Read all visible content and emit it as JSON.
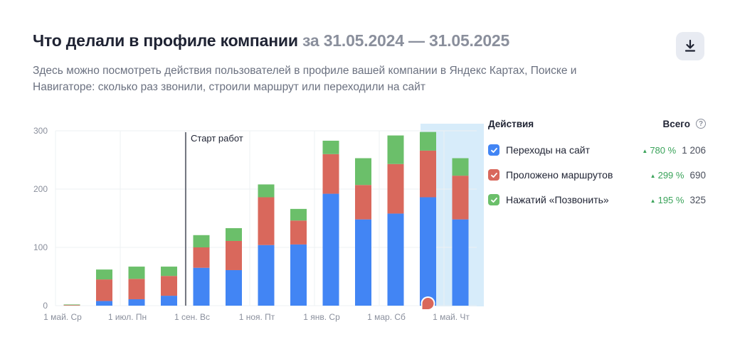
{
  "header": {
    "title_main": "Что делали в профиле компании",
    "title_range": "за 31.05.2024 — 31.05.2025",
    "subtitle": "Здесь можно посмотреть действия пользователей в профиле вашей компании в Яндекс Картах, Поиске и Навигаторе: сколько раз звонили, строили маршрут или переходили на сайт",
    "download_icon": "download-icon"
  },
  "legend": {
    "actions_label": "Действия",
    "total_label": "Всего",
    "help_symbol": "?",
    "items": [
      {
        "label": "Переходы на сайт",
        "growth": "780 %",
        "total": "1 206",
        "color": "#4285f4"
      },
      {
        "label": "Проложено маршрутов",
        "growth": "299 %",
        "total": "690",
        "color": "#d9685c"
      },
      {
        "label": "Нажатий «Позвонить»",
        "growth": "195 %",
        "total": "325",
        "color": "#6bbf6a"
      }
    ]
  },
  "chart_data": {
    "type": "bar",
    "stacked": true,
    "ylim": [
      0,
      300
    ],
    "yticks": [
      0,
      100,
      200,
      300
    ],
    "x_tick_labels": [
      "1 май. Ср",
      "1 июл. Пн",
      "1 сен. Вс",
      "1 ноя. Пт",
      "1 янв. Ср",
      "1 мар. Сб",
      "1 май. Чт"
    ],
    "annotation": "Старт работ",
    "highlighted_bar_index": 12,
    "series": [
      {
        "name": "Переходы на сайт",
        "color": "#4285f4",
        "values": [
          0,
          8,
          11,
          17,
          65,
          61,
          104,
          105,
          192,
          148,
          158,
          186,
          148
        ]
      },
      {
        "name": "Проложено маршрутов",
        "color": "#d9685c",
        "values": [
          1,
          37,
          35,
          34,
          35,
          50,
          82,
          41,
          68,
          59,
          85,
          80,
          75
        ]
      },
      {
        "name": "Нажатий «Позвонить»",
        "color": "#6bbf6a",
        "values": [
          1,
          17,
          21,
          16,
          21,
          22,
          22,
          20,
          23,
          46,
          49,
          32,
          30
        ]
      }
    ],
    "colors": {
      "grid": "#eef0f3",
      "axis_text": "#8a8f9c",
      "highlight": "#d7ecfa",
      "annotation_line": "#1f2333"
    }
  }
}
